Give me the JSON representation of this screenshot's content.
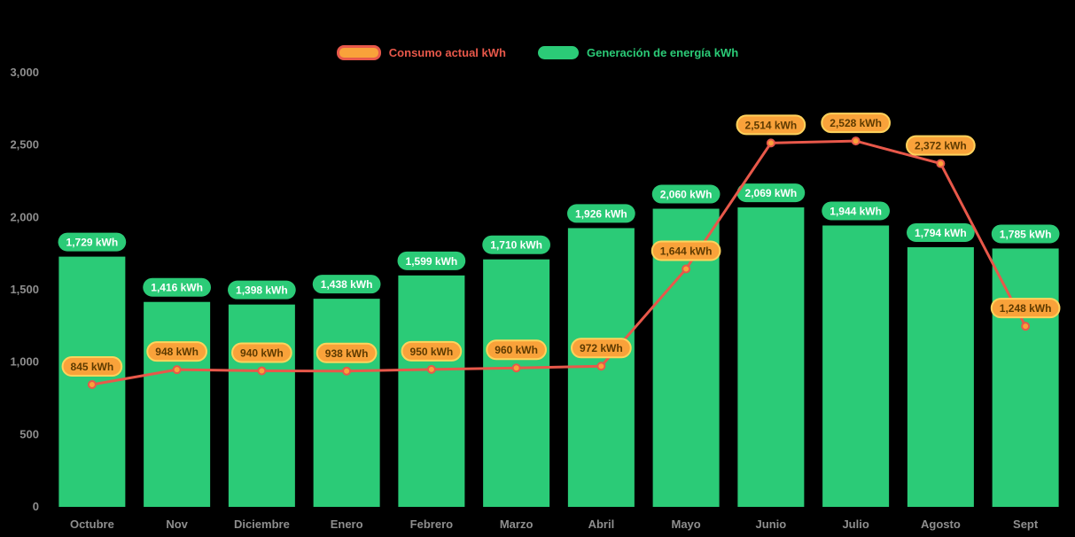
{
  "background": "#000000",
  "legend": {
    "items": [
      {
        "id": "consumo",
        "label": "Consumo actual kWh",
        "text_color": "#E8584A",
        "swatch_fill": "#F9A23A",
        "swatch_border": "#E8584A"
      },
      {
        "id": "generacion",
        "label": "Generación de energía kWh",
        "text_color": "#2BCB77",
        "swatch_fill": "#2BCB77",
        "swatch_border": ""
      }
    ]
  },
  "chart_data": {
    "type": "bar",
    "title": "",
    "xlabel": "",
    "ylabel": "",
    "categories": [
      "Octubre",
      "Nov",
      "Diciembre",
      "Enero",
      "Febrero",
      "Marzo",
      "Abril",
      "Mayo",
      "Junio",
      "Julio",
      "Agosto",
      "Sept"
    ],
    "series": [
      {
        "name": "Generación de energía kWh",
        "type": "bar",
        "color": "#2BCB77",
        "badge_fill": "#2BCB77",
        "badge_text_color": "#FFFFFF",
        "values": [
          1729,
          1416,
          1398,
          1438,
          1599,
          1710,
          1926,
          2060,
          2069,
          1944,
          1794,
          1785
        ]
      },
      {
        "name": "Consumo actual kWh",
        "type": "line",
        "color": "#E8584A",
        "marker_fill": "#F9A23A",
        "marker_border": "#E8584A",
        "badge_fill": "#F9A23A",
        "badge_border": "#FFD35C",
        "badge_text_color": "#5D3A00",
        "values": [
          845,
          948,
          940,
          938,
          950,
          960,
          972,
          1644,
          2514,
          2528,
          2372,
          1248
        ]
      }
    ],
    "unit_suffix": " kWh",
    "ylim": [
      0,
      3000
    ],
    "ytick_step": 500,
    "yticks": [
      "0",
      "500",
      "1,000",
      "1,500",
      "2,000",
      "2,500",
      "3,000"
    ],
    "grid": false,
    "legend_position": "top",
    "axis_label_color": "#8E8E8E"
  }
}
